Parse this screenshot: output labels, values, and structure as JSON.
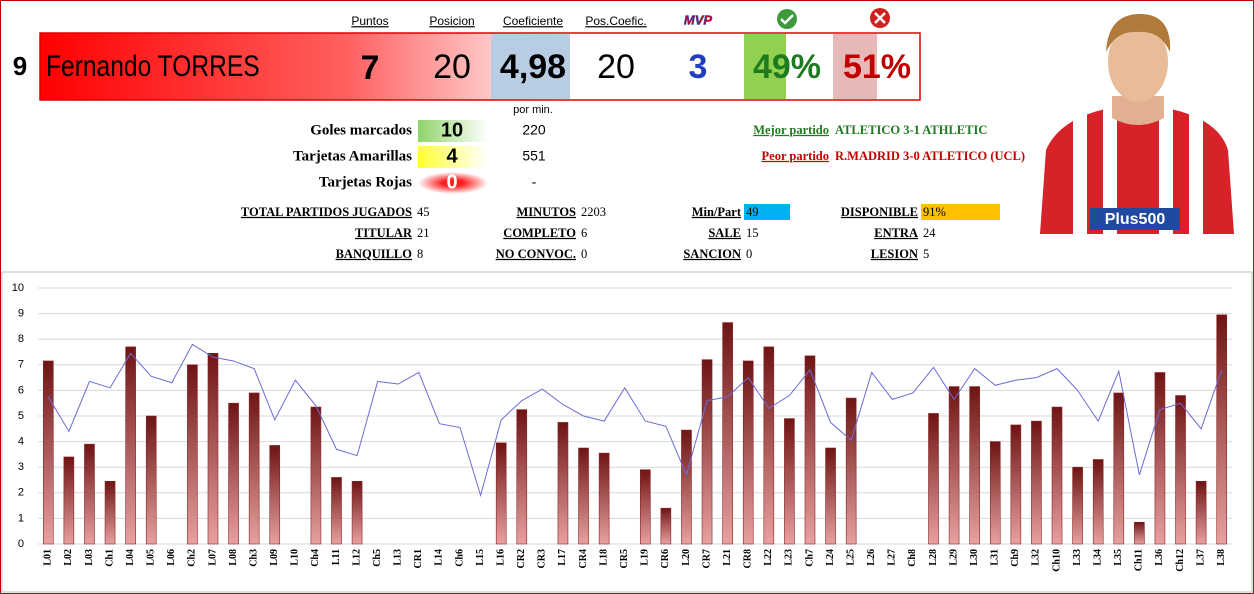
{
  "header": {
    "columns": [
      "Puntos",
      "Posicion",
      "Coeficiente",
      "Pos.Coefic."
    ],
    "mvp_icon": "MVP"
  },
  "player": {
    "number": 9,
    "name": "Fernando TORRES",
    "puntos": 7,
    "posicion": 20,
    "coeficiente": "4,98",
    "pos_coefic": 20,
    "mvp": 3,
    "win_pct": "49%",
    "loss_pct": "51%"
  },
  "stats": {
    "per_min_label": "por min.",
    "rows": [
      {
        "label": "Goles marcados",
        "value": 10,
        "per_min": 220
      },
      {
        "label": "Tarjetas Amarillas",
        "value": 4,
        "per_min": 551
      },
      {
        "label": "Tarjetas Rojas",
        "value": 0,
        "per_min": "-"
      }
    ]
  },
  "matches": {
    "best_label": "Mejor partido",
    "best": "ATLETICO 3-1 ATHLETIC",
    "worst_label": "Peor partido",
    "worst": "R.MADRID 3-0 ATLETICO (UCL)"
  },
  "summary": [
    [
      {
        "label": "TOTAL PARTIDOS JUGADOS",
        "value": 45
      },
      {
        "label": "MINUTOS",
        "value": 2203
      },
      {
        "label": "Min/Part",
        "value": 49
      },
      {
        "label": "DISPONIBLE",
        "value": "91%"
      }
    ],
    [
      {
        "label": "TITULAR",
        "value": 21
      },
      {
        "label": "COMPLETO",
        "value": 6
      },
      {
        "label": "SALE",
        "value": 15
      },
      {
        "label": "ENTRA",
        "value": 24
      }
    ],
    [
      {
        "label": "BANQUILLO",
        "value": 8
      },
      {
        "label": "NO CONVOC.",
        "value": 0
      },
      {
        "label": "SANCION",
        "value": 0
      },
      {
        "label": "LESION",
        "value": 5
      }
    ]
  ],
  "photo": {
    "sponsor": "Plus500"
  },
  "chart_data": {
    "type": "bar",
    "categories": [
      "L01",
      "L02",
      "L03",
      "Ch1",
      "L04",
      "L05",
      "L06",
      "Ch2",
      "L07",
      "L08",
      "Ch3",
      "L09",
      "L10",
      "Ch4",
      "L11",
      "L12",
      "Ch5",
      "L13",
      "CR1",
      "L14",
      "Ch6",
      "L15",
      "L16",
      "CR2",
      "CR3",
      "L17",
      "CR4",
      "L18",
      "CR5",
      "L19",
      "CR6",
      "L20",
      "CR7",
      "L21",
      "CR8",
      "L22",
      "L23",
      "Ch7",
      "L24",
      "L25",
      "L26",
      "L27",
      "Ch8",
      "L28",
      "L29",
      "L30",
      "L31",
      "Ch9",
      "L32",
      "Ch10",
      "L33",
      "L34",
      "L35",
      "Ch11",
      "L36",
      "Ch12",
      "L37",
      "L38"
    ],
    "series": [
      {
        "type": "bar",
        "color": "#8b2323",
        "values": [
          7.15,
          3.4,
          3.9,
          2.45,
          7.7,
          5.0,
          null,
          7.0,
          7.45,
          5.5,
          5.9,
          3.85,
          null,
          5.35,
          2.6,
          2.45,
          null,
          null,
          null,
          null,
          null,
          null,
          3.95,
          5.25,
          null,
          4.75,
          3.75,
          3.55,
          null,
          2.9,
          1.4,
          4.45,
          7.2,
          8.65,
          7.15,
          7.7,
          4.9,
          7.35,
          3.75,
          5.7,
          null,
          null,
          null,
          5.1,
          6.15,
          6.15,
          4.0,
          4.65,
          4.8,
          5.35,
          3.0,
          3.3,
          5.9,
          0.85,
          6.7,
          5.8,
          2.45,
          8.95
        ]
      },
      {
        "type": "line",
        "color": "#6b6bd6",
        "values": [
          5.75,
          4.4,
          6.35,
          6.1,
          7.45,
          6.55,
          6.3,
          7.8,
          7.3,
          7.15,
          6.85,
          4.85,
          6.4,
          5.4,
          3.7,
          3.45,
          6.35,
          6.25,
          6.7,
          4.7,
          4.55,
          1.9,
          4.85,
          5.6,
          6.05,
          5.45,
          5.0,
          4.8,
          6.1,
          4.8,
          4.6,
          2.7,
          5.6,
          5.75,
          6.5,
          5.3,
          5.8,
          6.8,
          4.75,
          4.05,
          6.7,
          5.65,
          5.9,
          6.9,
          5.65,
          6.85,
          6.2,
          6.4,
          6.5,
          6.85,
          6.0,
          4.8,
          6.75,
          2.7,
          5.25,
          5.5,
          4.5,
          6.8
        ]
      }
    ],
    "ylim": [
      0,
      10
    ],
    "yticks": [
      0,
      1,
      2,
      3,
      4,
      5,
      6,
      7,
      8,
      9,
      10
    ],
    "grid": true
  }
}
